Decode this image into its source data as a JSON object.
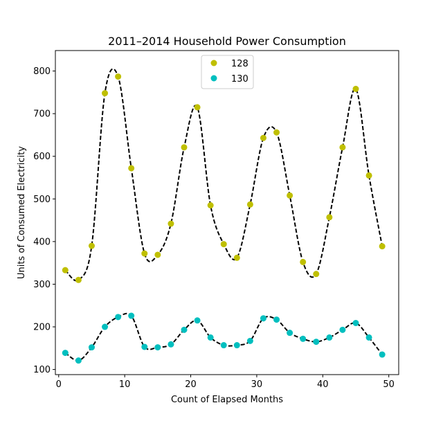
{
  "chart_data": {
    "type": "scatter",
    "title": "2011–2014 Household Power Consumption",
    "xlabel": "Count of Elapsed Months",
    "ylabel": "Units of Consumed Electricity",
    "xlim": [
      -0.5,
      51.5
    ],
    "ylim": [
      88,
      848
    ],
    "xticks": [
      0,
      10,
      20,
      30,
      40,
      50
    ],
    "yticks": [
      100,
      200,
      300,
      400,
      500,
      600,
      700,
      800
    ],
    "legend_position": "top-center",
    "grid": false,
    "fit_line_style": "dashed",
    "fit_line_color": "#000000",
    "x": [
      1,
      3,
      5,
      7,
      9,
      11,
      13,
      15,
      17,
      19,
      21,
      23,
      25,
      27,
      29,
      31,
      33,
      35,
      37,
      39,
      41,
      43,
      45,
      47,
      49
    ],
    "series": [
      {
        "name": "128",
        "color": "#bfbf00",
        "values": [
          333,
          310,
          390,
          748,
          787,
          572,
          372,
          369,
          442,
          621,
          715,
          485,
          394,
          362,
          487,
          643,
          656,
          508,
          352,
          324,
          457,
          621,
          758,
          555,
          389
        ]
      },
      {
        "name": "130",
        "color": "#00bfbf",
        "values": [
          139,
          121,
          152,
          200,
          223,
          226,
          153,
          152,
          159,
          193,
          215,
          175,
          157,
          157,
          167,
          220,
          217,
          186,
          172,
          165,
          175,
          193,
          209,
          175,
          135
        ]
      }
    ]
  }
}
